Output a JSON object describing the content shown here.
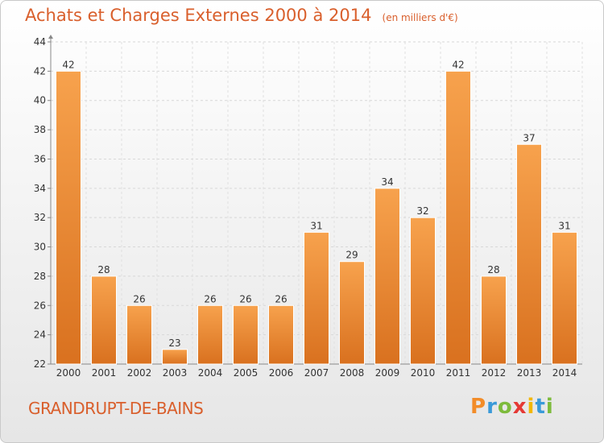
{
  "chart_data": {
    "type": "bar",
    "title": "Achats et Charges Externes 2000 à 2014",
    "unit_note": "(en milliers d'€)",
    "categories": [
      "2000",
      "2001",
      "2002",
      "2003",
      "2004",
      "2005",
      "2006",
      "2007",
      "2008",
      "2009",
      "2010",
      "2011",
      "2012",
      "2013",
      "2014"
    ],
    "values": [
      42,
      28,
      26,
      23,
      26,
      26,
      26,
      31,
      29,
      34,
      32,
      42,
      28,
      37,
      31
    ],
    "ylim": [
      22,
      44
    ],
    "yticks": [
      22,
      24,
      26,
      28,
      30,
      32,
      34,
      36,
      38,
      40,
      42,
      44
    ],
    "grid": true,
    "bar_color": "#f0923a"
  },
  "footer": {
    "commune": "GRANDRUPT-DE-BAINS",
    "logo_letters": [
      "P",
      "r",
      "o",
      "x",
      "i",
      "t",
      "i"
    ],
    "logo_colors": [
      "#f28c28",
      "#3a9ad9",
      "#7dbb3c",
      "#e53935",
      "#f2b705",
      "#3a9ad9",
      "#7dbb3c"
    ]
  }
}
